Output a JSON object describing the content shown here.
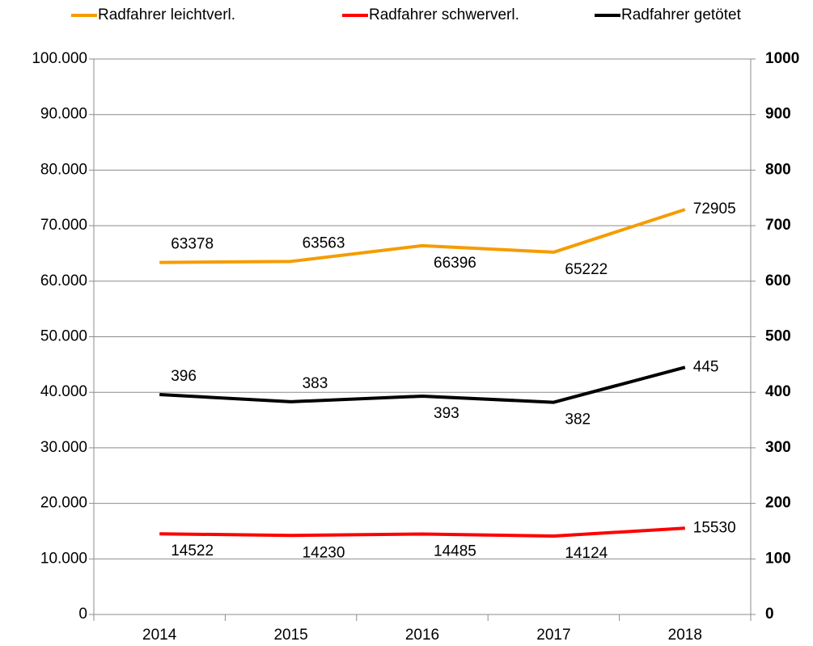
{
  "chart_data": {
    "type": "line",
    "categories": [
      "2014",
      "2015",
      "2016",
      "2017",
      "2018"
    ],
    "series": [
      {
        "name": "Radfahrer leichtverl.",
        "color": "#f59c00",
        "values": [
          63378,
          63563,
          66396,
          65222,
          72905
        ]
      },
      {
        "name": "Radfahrer schwerverl.",
        "color": "#ff0000",
        "values": [
          14522,
          14230,
          14485,
          14124,
          15530
        ]
      },
      {
        "name": "Radfahrer getötet",
        "color": "#000000",
        "axis": "y2",
        "values": [
          396,
          383,
          393,
          382,
          445
        ]
      }
    ],
    "ylim": [
      0,
      100000
    ],
    "yticks": [
      0,
      {
        "value": 10000,
        "label": "10.000"
      },
      {
        "value": 20000,
        "label": "20.000"
      },
      {
        "value": 30000,
        "label": "30.000"
      },
      {
        "value": 40000,
        "label": "40.000"
      },
      {
        "value": 50000,
        "label": "50.000"
      },
      {
        "value": 60000,
        "label": "60.000"
      },
      {
        "value": 70000,
        "label": "70.000"
      },
      {
        "value": 80000,
        "label": "80.000"
      },
      {
        "value": 90000,
        "label": "90.000"
      },
      {
        "value": 100000,
        "label": "100.000"
      }
    ],
    "y2lim": [
      0,
      1000
    ],
    "y2ticks": [
      0,
      100,
      200,
      300,
      400,
      500,
      600,
      700,
      800,
      900,
      1000
    ],
    "grid": true,
    "legend": "top"
  }
}
